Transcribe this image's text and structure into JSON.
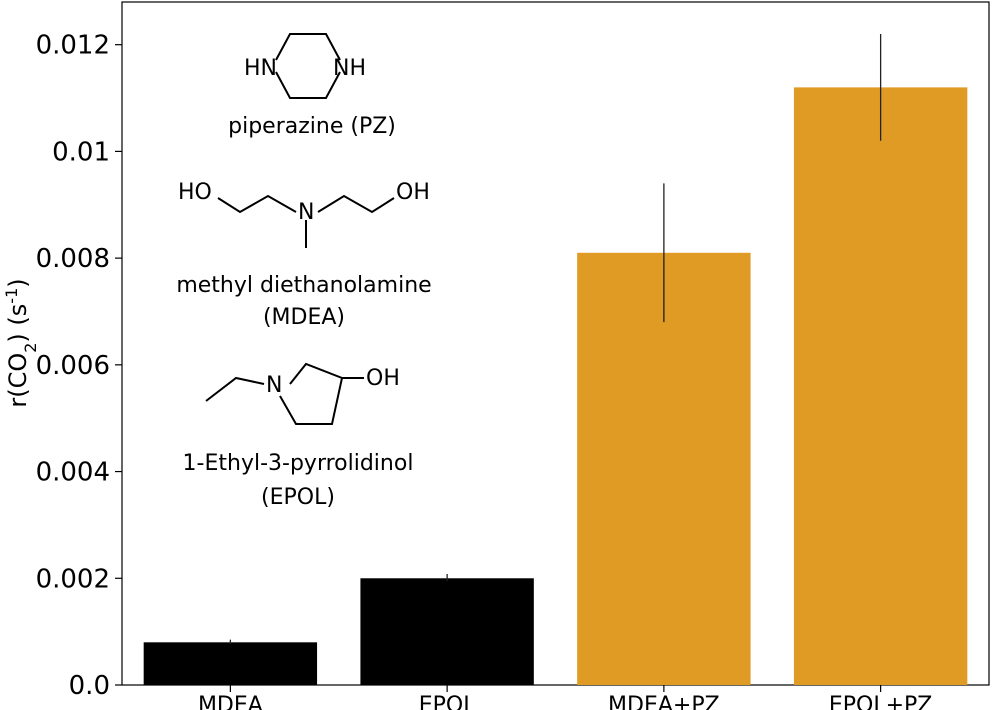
{
  "chart_data": {
    "type": "bar",
    "categories": [
      "MDEA",
      "EPOL",
      "MDEA+PZ",
      "EPOL+PZ"
    ],
    "values": [
      0.0008,
      0.002,
      0.0081,
      0.0112
    ],
    "error_low": [
      0.00077,
      0.00195,
      0.0068,
      0.0102
    ],
    "error_high": [
      0.00085,
      0.00208,
      0.0094,
      0.0122
    ],
    "colors": [
      "#000000",
      "#000000",
      "#e09b24",
      "#e09b24"
    ],
    "yticks": [
      "0.0",
      "0.002",
      "0.004",
      "0.006",
      "0.008",
      "0.01",
      "0.012"
    ],
    "ytick_values": [
      0,
      0.002,
      0.004,
      0.006,
      0.008,
      0.01,
      0.012
    ],
    "ylim": [
      0,
      0.0128
    ],
    "ylabel": {
      "prefix": "r(CO",
      "sub": "2",
      "mid": ") (s",
      "sup": "-1",
      "suffix": ")"
    },
    "grid": false
  },
  "structures": {
    "pz_hn_left": "HN",
    "pz_nh_right": "NH",
    "pz_name": "piperazine (PZ)",
    "mdea_ho": "HO",
    "mdea_n": "N",
    "mdea_oh": "OH",
    "mdea_name_line1": "methyl diethanolamine",
    "mdea_name_line2": "(MDEA)",
    "epol_n": "N",
    "epol_oh": "OH",
    "epol_name_line1": "1-Ethyl-3-pyrrolidinol",
    "epol_name_line2": "(EPOL)"
  }
}
